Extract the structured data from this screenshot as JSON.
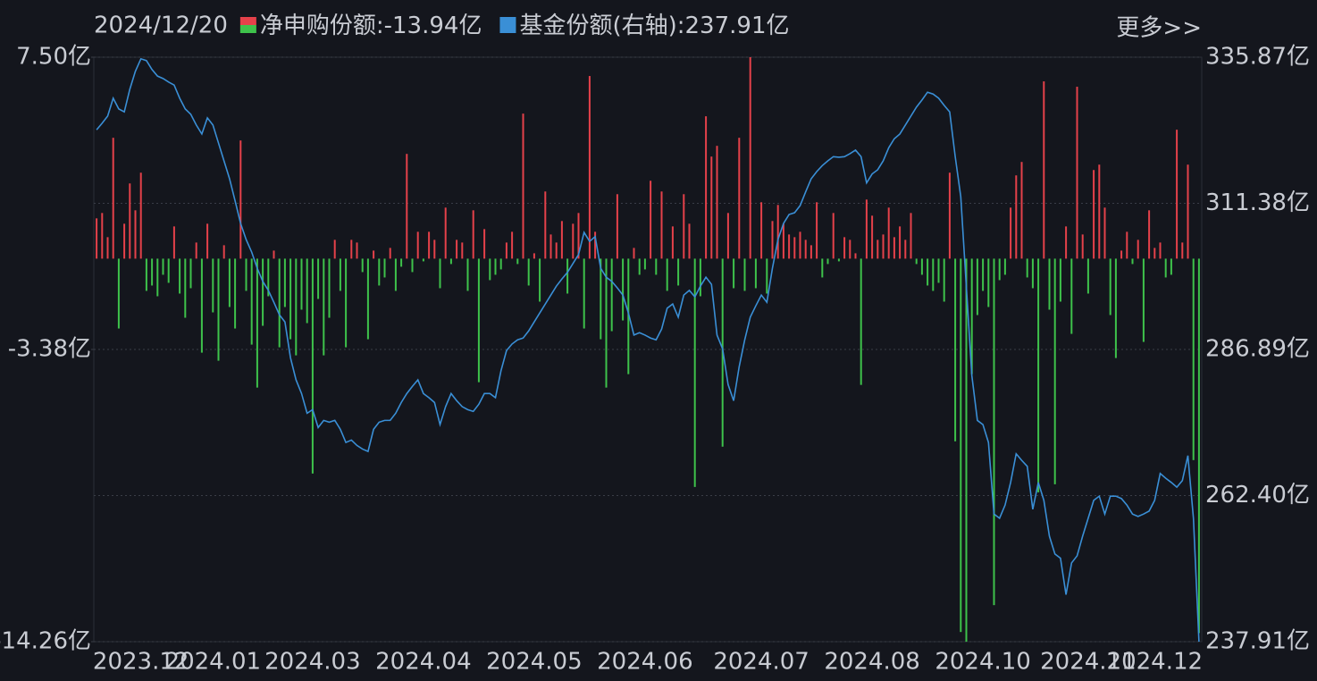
{
  "chart_data": {
    "type": "bar",
    "date": "2024/12/20",
    "more_link": "更多>>",
    "categories": [
      null,
      null,
      null,
      null,
      null,
      null,
      null,
      null,
      "2023.12",
      null,
      null,
      null,
      null,
      null,
      null,
      null,
      null,
      null,
      null,
      null,
      null,
      "2024.01",
      null,
      null,
      null,
      null,
      null,
      null,
      null,
      null,
      null,
      null,
      null,
      null,
      null,
      null,
      null,
      null,
      null,
      "2024.03",
      null,
      null,
      null,
      null,
      null,
      null,
      null,
      null,
      null,
      null,
      null,
      null,
      null,
      null,
      null,
      null,
      null,
      null,
      null,
      "2024.04",
      null,
      null,
      null,
      null,
      null,
      null,
      null,
      null,
      null,
      null,
      null,
      null,
      null,
      null,
      null,
      null,
      null,
      null,
      null,
      "2024.05",
      null,
      null,
      null,
      null,
      null,
      null,
      null,
      null,
      null,
      null,
      null,
      null,
      null,
      null,
      null,
      null,
      null,
      null,
      null,
      "2024.06",
      null,
      null,
      null,
      null,
      null,
      null,
      null,
      null,
      null,
      null,
      null,
      null,
      null,
      null,
      null,
      null,
      null,
      null,
      null,
      null,
      "2024.07",
      null,
      null,
      null,
      null,
      null,
      null,
      null,
      null,
      null,
      null,
      null,
      null,
      null,
      null,
      null,
      null,
      null,
      null,
      null,
      "2024.08",
      null,
      null,
      null,
      null,
      null,
      null,
      null,
      null,
      null,
      null,
      null,
      null,
      null,
      null,
      null,
      null,
      null,
      null,
      null,
      "2024.10",
      null,
      null,
      null,
      null,
      null,
      null,
      null,
      null,
      null,
      null,
      null,
      null,
      null,
      null,
      null,
      null,
      null,
      null,
      "2024.11",
      null,
      null,
      null,
      null,
      null,
      null,
      null,
      null,
      null,
      null,
      null,
      "2024.12",
      null,
      null,
      null,
      null,
      null,
      null,
      null,
      null
    ],
    "series": [
      {
        "name": "净申购份额",
        "latest": ":-13.94亿",
        "type": "bar",
        "color": "#e5414a",
        "negative_color": "#3ec24b",
        "values": [
          1.5,
          1.7,
          0.8,
          4.5,
          -2.6,
          1.3,
          2.8,
          1.8,
          3.2,
          -1.2,
          -1.0,
          -1.4,
          -0.6,
          -0.9,
          1.2,
          -1.3,
          -2.2,
          -1.1,
          0.6,
          -3.5,
          1.3,
          -2.0,
          -3.8,
          0.5,
          -1.8,
          -2.6,
          4.4,
          -1.2,
          -3.2,
          -4.8,
          -2.5,
          -1.4,
          0.3,
          -3.3,
          -1.8,
          -3.0,
          -3.6,
          -1.9,
          -2.4,
          -8.0,
          -1.5,
          -3.6,
          -2.2,
          0.7,
          -1.2,
          -3.3,
          0.7,
          0.6,
          -0.5,
          -3.0,
          0.3,
          -1.0,
          -0.7,
          0.4,
          -1.2,
          -0.3,
          3.9,
          -0.5,
          1.0,
          -0.1,
          1.0,
          0.7,
          -1.1,
          1.9,
          -0.2,
          0.7,
          0.6,
          -1.2,
          1.8,
          -4.6,
          1.1,
          -0.8,
          -0.6,
          -0.4,
          0.6,
          1.0,
          -0.2,
          5.4,
          -1.0,
          0.2,
          -1.6,
          2.5,
          0.9,
          0.6,
          1.4,
          -1.3,
          1.3,
          1.7,
          -2.6,
          6.8,
          1.0,
          -3.0,
          -4.8,
          -2.7,
          2.4,
          -2.3,
          -4.3,
          0.4,
          -0.6,
          -0.4,
          2.9,
          -0.6,
          2.5,
          -1.2,
          1.2,
          -1.0,
          2.4,
          1.3,
          -8.5,
          -1.4,
          5.3,
          3.8,
          4.2,
          -7.0,
          1.7,
          -1.1,
          4.5,
          -1.2,
          7.5,
          -1.1,
          2.1,
          -1.3,
          1.4,
          2.0,
          1.3,
          0.9,
          0.8,
          1.0,
          0.7,
          0.5,
          2.1,
          -0.7,
          -0.2,
          1.7,
          -0.1,
          0.8,
          0.7,
          0.2,
          -4.7,
          2.2,
          1.6,
          0.7,
          0.9,
          1.9,
          0.8,
          1.2,
          0.7,
          1.7,
          -0.2,
          -0.6,
          -1.0,
          -1.2,
          -0.9,
          -1.6,
          3.2,
          -6.8,
          -13.9,
          -14.26,
          -4.3,
          -2.1,
          -1.2,
          -1.8,
          -12.9,
          -0.8,
          -0.6,
          1.9,
          3.1,
          3.6,
          -0.7,
          -1.1,
          -8.7,
          6.6,
          -1.9,
          -8.4,
          -1.6,
          1.2,
          -2.8,
          6.4,
          0.9,
          -1.3,
          3.3,
          3.5,
          1.9,
          -2.1,
          -3.7,
          0.3,
          1.0,
          -0.2,
          0.7,
          -3.1,
          1.8,
          0.4,
          0.6,
          -0.7,
          -0.6,
          4.8,
          0.6,
          3.5,
          -7.5,
          -13.94
        ]
      },
      {
        "name": "基金份额(右轴)",
        "latest": ":237.91亿",
        "type": "line",
        "axis": "y2",
        "color": "#3a8fd6",
        "values": [
          323.7,
          324.8,
          326.0,
          329.0,
          327.2,
          326.7,
          330.5,
          333.5,
          335.6,
          335.3,
          333.8,
          332.7,
          332.3,
          331.7,
          331.2,
          329.0,
          327.2,
          326.3,
          324.5,
          323.0,
          325.7,
          324.5,
          321.5,
          318.5,
          315.5,
          311.8,
          308.0,
          305.3,
          303.2,
          300.5,
          298.3,
          296.8,
          294.8,
          292.7,
          291.5,
          285.5,
          281.8,
          279.5,
          276.2,
          276.8,
          273.8,
          275.0,
          274.7,
          275.0,
          273.5,
          271.3,
          271.7,
          270.8,
          270.2,
          269.8,
          273.5,
          274.7,
          275.0,
          275.0,
          276.2,
          278.0,
          279.5,
          280.7,
          281.8,
          279.5,
          278.8,
          278.0,
          274.3,
          277.3,
          279.5,
          278.3,
          277.3,
          276.8,
          276.5,
          277.7,
          279.5,
          279.5,
          278.8,
          283.3,
          286.7,
          287.8,
          288.5,
          288.8,
          290.0,
          291.5,
          293.0,
          294.5,
          296.0,
          297.5,
          298.7,
          299.8,
          301.3,
          302.8,
          306.5,
          305.0,
          305.8,
          300.5,
          299.0,
          298.3,
          297.2,
          296.0,
          293.0,
          289.3,
          289.7,
          289.3,
          288.8,
          288.5,
          290.3,
          293.8,
          294.5,
          292.3,
          296.0,
          296.8,
          295.7,
          297.5,
          299.0,
          297.8,
          289.3,
          287.0,
          281.0,
          278.3,
          284.0,
          288.5,
          292.3,
          294.2,
          296.0,
          294.8,
          300.5,
          305.3,
          308.0,
          309.5,
          309.8,
          311.0,
          313.3,
          315.5,
          316.7,
          317.7,
          318.5,
          319.2,
          319.1,
          319.2,
          319.7,
          320.3,
          319.2,
          314.8,
          316.3,
          317.0,
          318.5,
          320.7,
          322.2,
          323.0,
          324.5,
          326.0,
          327.5,
          328.7,
          330.0,
          329.7,
          329.0,
          327.8,
          326.7,
          319.2,
          312.5,
          297.5,
          282.5,
          275.0,
          274.3,
          271.3,
          259.3,
          258.6,
          260.8,
          264.6,
          269.4,
          268.3,
          267.3,
          260.1,
          264.6,
          261.6,
          255.6,
          252.6,
          251.9,
          245.8,
          251.1,
          252.3,
          255.6,
          258.6,
          261.6,
          262.3,
          259.3,
          262.3,
          262.3,
          261.9,
          260.8,
          259.3,
          258.9,
          259.3,
          259.8,
          261.6,
          266.1,
          265.3,
          264.6,
          263.8,
          264.9,
          269.1,
          258.6,
          237.91
        ]
      }
    ],
    "ylim": [
      -14.26,
      7.5
    ],
    "yticks": [
      {
        "value": 7.5,
        "label": "7.50亿"
      },
      {
        "value": -3.38,
        "label": "-3.38亿"
      },
      {
        "value": -14.26,
        "label": "-14.26亿"
      }
    ],
    "y2lim": [
      237.91,
      335.87
    ],
    "y2ticks": [
      {
        "value": 335.87,
        "label": "335.87亿"
      },
      {
        "value": 311.38,
        "label": "311.38亿"
      },
      {
        "value": 286.89,
        "label": "286.89亿"
      },
      {
        "value": 262.4,
        "label": "262.40亿"
      },
      {
        "value": 237.91,
        "label": "237.91亿"
      }
    ],
    "grid": true
  }
}
